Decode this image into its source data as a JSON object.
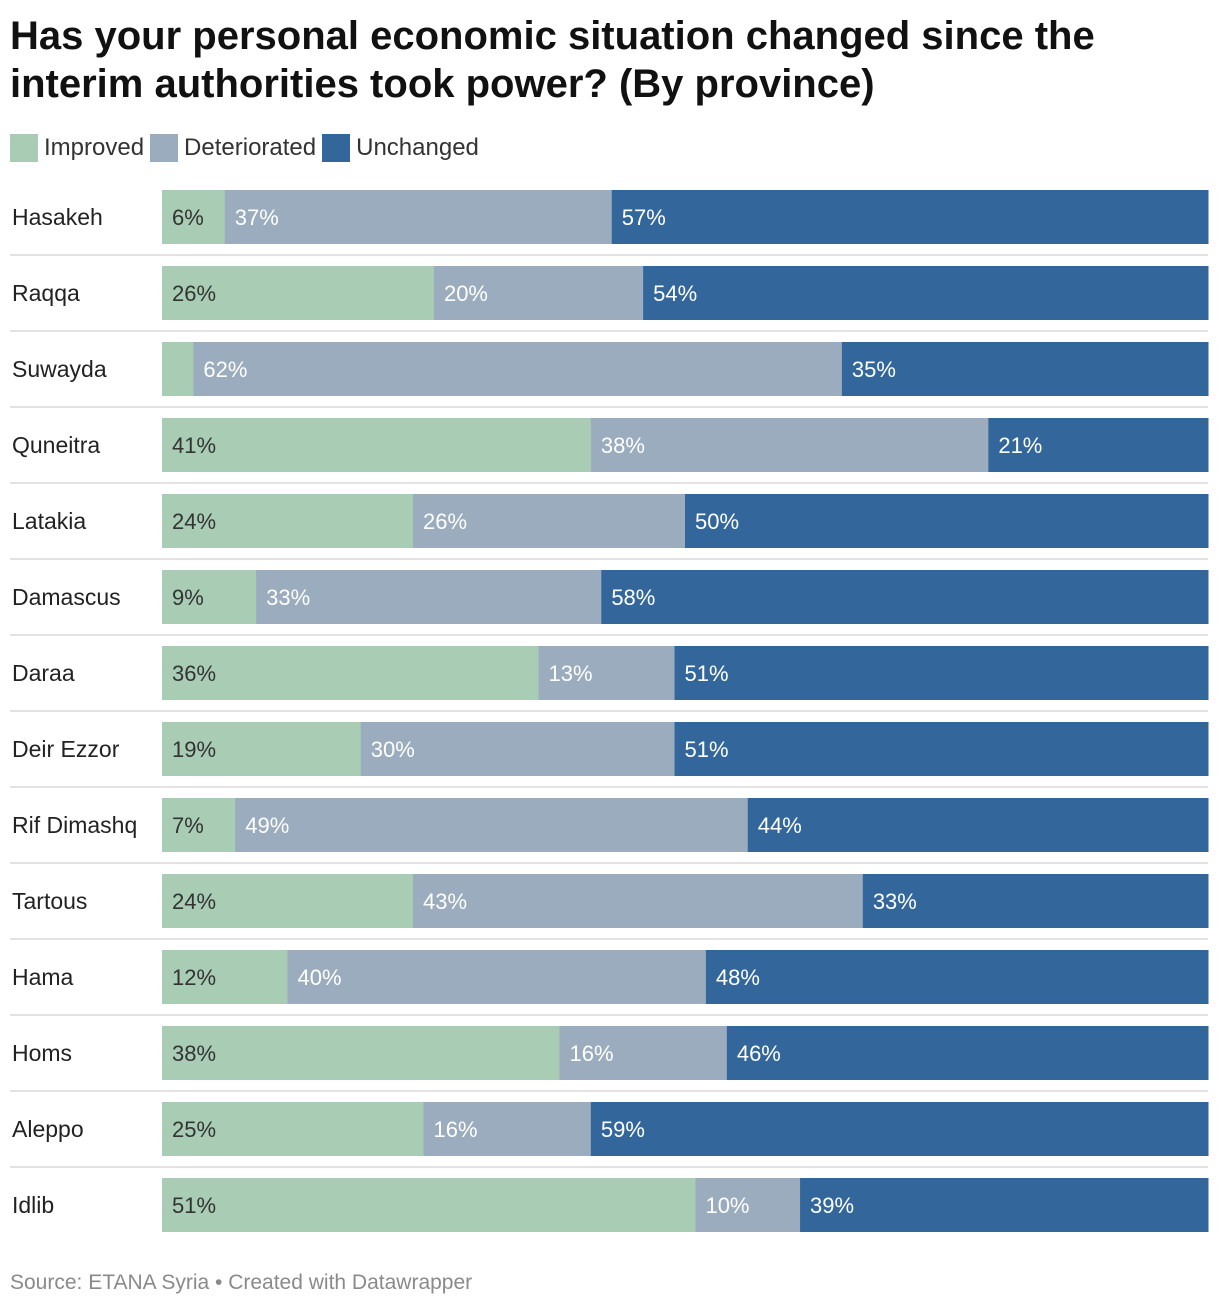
{
  "title": "Has your personal economic situation changed since the interim authorities took power? (By province)",
  "source": "Source: ETANA Syria • Created with Datawrapper",
  "colors": {
    "Improved": "#a9ccb5",
    "Deteriorated": "#9aacbd",
    "Unchanged": "#33679b"
  },
  "label_colors": {
    "Improved": "#333333",
    "Deteriorated": "#ffffff",
    "Unchanged": "#ffffff"
  },
  "chart_data": {
    "type": "bar",
    "orientation": "horizontal",
    "stacked": true,
    "legend": "top-left",
    "grid": false,
    "xlim": [
      0,
      100
    ],
    "categories": [
      "Hasakeh",
      "Raqqa",
      "Suwayda",
      "Quneitra",
      "Latakia",
      "Damascus",
      "Daraa",
      "Deir Ezzor",
      "Rif Dimashq",
      "Tartous",
      "Hama",
      "Homs",
      "Aleppo",
      "Idlib"
    ],
    "series": [
      {
        "name": "Improved",
        "values": [
          6,
          26,
          3,
          41,
          24,
          9,
          36,
          19,
          7,
          24,
          12,
          38,
          25,
          51
        ],
        "labels": [
          "6%",
          "26%",
          "",
          "41%",
          "24%",
          "9%",
          "36%",
          "19%",
          "7%",
          "24%",
          "12%",
          "38%",
          "25%",
          "51%"
        ]
      },
      {
        "name": "Deteriorated",
        "values": [
          37,
          20,
          62,
          38,
          26,
          33,
          13,
          30,
          49,
          43,
          40,
          16,
          16,
          10
        ],
        "labels": [
          "37%",
          "20%",
          "62%",
          "38%",
          "26%",
          "33%",
          "13%",
          "30%",
          "49%",
          "43%",
          "40%",
          "16%",
          "16%",
          "10%"
        ]
      },
      {
        "name": "Unchanged",
        "values": [
          57,
          54,
          35,
          21,
          50,
          58,
          51,
          51,
          44,
          33,
          48,
          46,
          59,
          39
        ],
        "labels": [
          "57%",
          "54%",
          "35%",
          "21%",
          "50%",
          "58%",
          "51%",
          "51%",
          "44%",
          "33%",
          "48%",
          "46%",
          "59%",
          "39%"
        ]
      }
    ]
  }
}
